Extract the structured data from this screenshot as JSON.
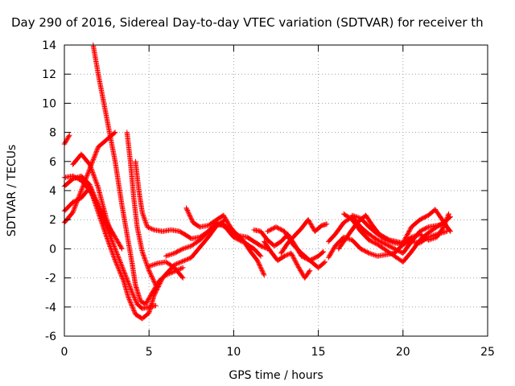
{
  "chart_data": {
    "type": "scatter",
    "title": "Day 290 of 2016, Sidereal Day-to-day VTEC variation (SDTVAR) for receiver th",
    "xlabel": "GPS time / hours",
    "ylabel": "SDTVAR / TECUs",
    "xlim": [
      0,
      25
    ],
    "ylim": [
      -6,
      14
    ],
    "xticks": [
      0,
      5,
      10,
      15,
      20,
      25
    ],
    "yticks": [
      -6,
      -4,
      -2,
      0,
      2,
      4,
      6,
      8,
      10,
      12,
      14
    ],
    "grid": true,
    "legend": "none",
    "marker": "plus",
    "color": "#ff0000",
    "series": [
      {
        "points": [
          [
            1.7,
            14.0
          ],
          [
            2.0,
            12.0
          ],
          [
            2.5,
            9.0
          ],
          [
            3.0,
            6.0
          ],
          [
            3.4,
            3.0
          ],
          [
            3.7,
            1.0
          ],
          [
            4.0,
            -1.0
          ],
          [
            4.2,
            -2.5
          ],
          [
            4.5,
            -3.6
          ],
          [
            4.8,
            -3.8
          ],
          [
            5.2,
            -3.0
          ],
          [
            5.6,
            -2.2
          ],
          [
            6.0,
            -1.8
          ],
          [
            6.6,
            -1.5
          ],
          [
            7.0,
            -1.3
          ]
        ]
      },
      {
        "points": [
          [
            0.0,
            7.2
          ],
          [
            0.3,
            7.8
          ]
        ]
      },
      {
        "points": [
          [
            0.0,
            4.9
          ],
          [
            0.5,
            5.0
          ],
          [
            1.0,
            4.7
          ],
          [
            1.5,
            4.0
          ],
          [
            2.0,
            3.0
          ],
          [
            2.5,
            1.5
          ],
          [
            3.0,
            0.0
          ],
          [
            3.5,
            -1.5
          ],
          [
            4.0,
            -3.0
          ],
          [
            4.3,
            -3.8
          ],
          [
            4.6,
            -4.1
          ],
          [
            5.0,
            -4.0
          ],
          [
            5.4,
            -3.9
          ]
        ]
      },
      {
        "points": [
          [
            0.0,
            1.8
          ],
          [
            0.5,
            2.5
          ],
          [
            1.0,
            4.0
          ],
          [
            1.5,
            5.5
          ],
          [
            2.0,
            7.0
          ],
          [
            2.5,
            7.5
          ],
          [
            3.0,
            8.0
          ]
        ]
      },
      {
        "points": [
          [
            0.0,
            2.6
          ],
          [
            0.5,
            3.2
          ],
          [
            1.0,
            3.5
          ],
          [
            1.5,
            4.2
          ],
          [
            2.0,
            2.5
          ],
          [
            2.5,
            0.8
          ],
          [
            3.0,
            -0.8
          ],
          [
            3.5,
            -2.2
          ],
          [
            3.8,
            -3.4
          ],
          [
            4.2,
            -4.5
          ],
          [
            4.6,
            -4.8
          ],
          [
            5.0,
            -4.4
          ],
          [
            5.3,
            -3.2
          ],
          [
            5.8,
            -2.0
          ],
          [
            6.5,
            -1.1
          ],
          [
            7.5,
            -0.6
          ],
          [
            8.5,
            0.8
          ],
          [
            9.0,
            1.6
          ],
          [
            9.5,
            2.0
          ]
        ]
      },
      {
        "points": [
          [
            0.0,
            4.3
          ],
          [
            0.5,
            4.8
          ],
          [
            1.0,
            5.0
          ],
          [
            1.5,
            4.4
          ],
          [
            2.0,
            3.0
          ],
          [
            2.5,
            1.8
          ],
          [
            3.0,
            0.8
          ],
          [
            3.4,
            0.0
          ]
        ]
      },
      {
        "points": [
          [
            0.5,
            5.8
          ],
          [
            1.0,
            6.5
          ],
          [
            1.5,
            5.8
          ],
          [
            2.0,
            4.2
          ],
          [
            2.5,
            2.0
          ],
          [
            2.8,
            1.0
          ]
        ]
      },
      {
        "points": [
          [
            3.7,
            8.0
          ],
          [
            3.9,
            6.0
          ],
          [
            4.1,
            3.5
          ],
          [
            4.3,
            1.5
          ],
          [
            4.6,
            -0.2
          ],
          [
            5.0,
            -1.5
          ],
          [
            5.4,
            -2.5
          ]
        ]
      },
      {
        "points": [
          [
            4.2,
            6.0
          ],
          [
            4.4,
            4.0
          ],
          [
            4.6,
            2.5
          ],
          [
            4.9,
            1.5
          ],
          [
            5.3,
            1.3
          ],
          [
            5.8,
            1.2
          ],
          [
            6.3,
            1.3
          ],
          [
            6.8,
            1.2
          ],
          [
            7.1,
            1.0
          ],
          [
            7.5,
            0.7
          ],
          [
            8.0,
            0.8
          ],
          [
            8.5,
            1.2
          ],
          [
            9.0,
            1.8
          ],
          [
            9.5,
            1.5
          ],
          [
            10.0,
            0.8
          ],
          [
            10.5,
            0.5
          ]
        ]
      },
      {
        "points": [
          [
            7.2,
            2.8
          ],
          [
            7.6,
            1.8
          ],
          [
            8.0,
            1.5
          ],
          [
            8.5,
            1.6
          ],
          [
            9.0,
            2.0
          ],
          [
            9.4,
            2.3
          ],
          [
            9.8,
            1.5
          ],
          [
            10.3,
            0.8
          ],
          [
            10.8,
            0.3
          ],
          [
            11.2,
            0.0
          ],
          [
            11.6,
            -0.5
          ]
        ]
      },
      {
        "points": [
          [
            5.0,
            -1.2
          ],
          [
            5.5,
            -1.0
          ],
          [
            6.0,
            -0.9
          ],
          [
            6.5,
            -1.3
          ],
          [
            7.0,
            -2.0
          ]
        ]
      },
      {
        "points": [
          [
            6.0,
            -0.5
          ],
          [
            6.5,
            -0.3
          ],
          [
            7.0,
            0.0
          ],
          [
            7.5,
            0.2
          ],
          [
            8.0,
            0.6
          ],
          [
            8.5,
            1.2
          ],
          [
            9.0,
            1.6
          ],
          [
            9.4,
            1.7
          ],
          [
            9.8,
            1.2
          ],
          [
            10.3,
            0.9
          ],
          [
            10.8,
            0.8
          ],
          [
            11.2,
            0.5
          ],
          [
            11.6,
            0.2
          ],
          [
            12.0,
            0.0
          ]
        ]
      },
      {
        "points": [
          [
            10.2,
            1.0
          ],
          [
            10.6,
            0.5
          ],
          [
            11.0,
            -0.2
          ],
          [
            11.4,
            -0.8
          ],
          [
            11.8,
            -1.8
          ]
        ]
      },
      {
        "points": [
          [
            11.2,
            1.3
          ],
          [
            11.6,
            1.2
          ],
          [
            12.0,
            0.6
          ],
          [
            12.4,
            0.2
          ],
          [
            12.8,
            0.5
          ],
          [
            13.2,
            1.0
          ],
          [
            13.6,
            0.3
          ],
          [
            14.0,
            -0.5
          ],
          [
            14.5,
            -0.8
          ],
          [
            15.0,
            -0.5
          ],
          [
            15.3,
            -0.2
          ]
        ]
      },
      {
        "points": [
          [
            11.8,
            0.5
          ],
          [
            12.2,
            -0.2
          ],
          [
            12.6,
            -0.8
          ],
          [
            13.0,
            -0.5
          ],
          [
            13.4,
            -0.3
          ],
          [
            13.8,
            -1.2
          ],
          [
            14.2,
            -2.0
          ],
          [
            14.5,
            -1.5
          ]
        ]
      },
      {
        "points": [
          [
            12.0,
            1.2
          ],
          [
            12.5,
            1.5
          ],
          [
            13.0,
            1.2
          ],
          [
            13.5,
            0.3
          ],
          [
            14.0,
            -0.3
          ],
          [
            14.5,
            -0.8
          ],
          [
            15.0,
            -1.3
          ],
          [
            15.4,
            -0.9
          ]
        ]
      },
      {
        "points": [
          [
            12.8,
            -0.3
          ],
          [
            13.2,
            0.4
          ],
          [
            13.6,
            0.9
          ],
          [
            14.0,
            1.4
          ],
          [
            14.4,
            2.0
          ],
          [
            14.8,
            1.2
          ],
          [
            15.2,
            1.6
          ],
          [
            15.5,
            1.7
          ]
        ]
      },
      {
        "points": [
          [
            15.6,
            -0.6
          ],
          [
            16.0,
            0.2
          ],
          [
            16.5,
            0.8
          ],
          [
            17.0,
            0.6
          ],
          [
            17.5,
            0.0
          ],
          [
            18.0,
            -0.3
          ],
          [
            18.5,
            -0.5
          ],
          [
            19.0,
            -0.4
          ],
          [
            19.5,
            -0.3
          ],
          [
            20.0,
            0.3
          ],
          [
            20.5,
            0.8
          ],
          [
            21.0,
            1.0
          ],
          [
            21.5,
            0.6
          ],
          [
            22.0,
            0.8
          ],
          [
            22.4,
            1.5
          ],
          [
            22.7,
            2.4
          ]
        ]
      },
      {
        "points": [
          [
            15.6,
            0.5
          ],
          [
            16.0,
            1.0
          ],
          [
            16.5,
            1.8
          ],
          [
            17.0,
            2.2
          ],
          [
            17.5,
            1.5
          ],
          [
            18.0,
            1.0
          ],
          [
            18.5,
            0.6
          ],
          [
            19.0,
            0.3
          ],
          [
            19.5,
            0.0
          ],
          [
            20.0,
            -0.3
          ],
          [
            20.5,
            0.5
          ],
          [
            21.0,
            1.2
          ],
          [
            21.5,
            1.5
          ],
          [
            22.0,
            1.6
          ],
          [
            22.5,
            1.7
          ]
        ]
      },
      {
        "points": [
          [
            16.2,
            0.0
          ],
          [
            16.8,
            1.0
          ],
          [
            17.3,
            1.8
          ],
          [
            17.8,
            2.3
          ],
          [
            18.2,
            1.6
          ],
          [
            18.6,
            1.0
          ],
          [
            19.2,
            0.6
          ],
          [
            19.6,
            0.5
          ],
          [
            20.0,
            0.4
          ],
          [
            20.5,
            1.5
          ],
          [
            21.0,
            2.0
          ],
          [
            21.5,
            2.3
          ],
          [
            21.9,
            2.7
          ],
          [
            22.2,
            2.2
          ],
          [
            22.6,
            1.5
          ],
          [
            22.8,
            1.2
          ]
        ]
      },
      {
        "points": [
          [
            16.5,
            2.4
          ],
          [
            17.0,
            2.0
          ],
          [
            17.5,
            1.2
          ],
          [
            18.0,
            0.6
          ],
          [
            18.5,
            0.3
          ],
          [
            19.0,
            -0.1
          ],
          [
            19.5,
            -0.5
          ],
          [
            20.0,
            -0.9
          ],
          [
            20.5,
            -0.2
          ],
          [
            21.0,
            0.6
          ],
          [
            21.5,
            1.1
          ],
          [
            22.0,
            1.5
          ],
          [
            22.5,
            1.9
          ],
          [
            22.8,
            2.2
          ]
        ]
      },
      {
        "points": [
          [
            17.0,
            2.3
          ],
          [
            17.5,
            2.1
          ],
          [
            18.0,
            1.5
          ],
          [
            18.5,
            1.0
          ],
          [
            19.0,
            0.6
          ],
          [
            19.5,
            0.4
          ],
          [
            20.0,
            0.3
          ],
          [
            20.5,
            0.5
          ],
          [
            21.0,
            0.4
          ],
          [
            21.5,
            0.8
          ],
          [
            22.0,
            1.0
          ],
          [
            22.6,
            1.2
          ]
        ]
      }
    ]
  }
}
